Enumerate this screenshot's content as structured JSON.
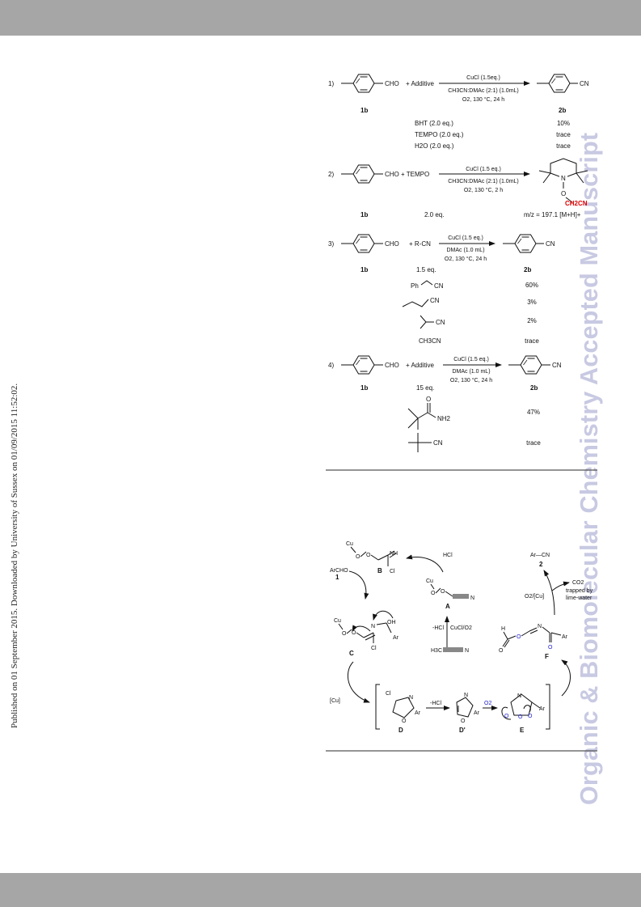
{
  "margin_note": "Published on 01 September 2015. Downloaded by University of Sussex on 01/09/2015 11:52:02.",
  "watermark": "Organic & Biomolecular Chemistry Accepted Manuscript",
  "scheme1": {
    "r1": {
      "num": "1)",
      "cho": "CHO",
      "plus_additive": "+  Additive",
      "cond1": "CuCl (1.5eq.)",
      "cond2": "CH3CN:DMAc (2:1) (1.0mL)",
      "cond3": "O2, 130 °C, 24 h",
      "cn": "CN",
      "lab_sm": "1b",
      "lab_pr": "2b",
      "additives": [
        "BHT (2.0 eq.)",
        "TEMPO (2.0 eq.)",
        "H2O (2.0 eq.)"
      ],
      "yields": [
        "10%",
        "trace",
        "trace"
      ]
    },
    "r2": {
      "num": "2)",
      "cho_tempo": "CHO + TEMPO",
      "cond1": "CuCl (1.5 eq.)",
      "cond2": "CH3CN:DMAc (2:1) (1.0mL)",
      "cond3": "O2, 130 °C, 2 h",
      "n": "N",
      "o": "O",
      "ch2cn": "CH2CN",
      "lab_sm": "1b",
      "eq": "2.0 eq.",
      "ms": "m/z = 197.1 [M+H]+"
    },
    "r3": {
      "num": "3)",
      "cho": "CHO",
      "plus_rcn": "+  R-CN",
      "cond1": "CuCl (1.5 eq.)",
      "cond2": "DMAc (1.0 mL)",
      "cond3": "O2, 130 °C, 24 h",
      "cn": "CN",
      "lab_sm": "1b",
      "eq": "1.5 eq.",
      "lab_pr": "2b",
      "nitriles": [
        "Ph",
        "CN",
        "CN",
        "CN",
        "CH3CN"
      ],
      "yields": [
        "60%",
        "3%",
        "2%",
        "trace"
      ]
    },
    "r4": {
      "num": "4)",
      "cho": "CHO",
      "plus_additive": "+  Additive",
      "cond1": "CuCl (1.5 eq.)",
      "cond2": "DMAc (1.0 mL)",
      "cond3": "O2, 130 °C, 24 h",
      "cn": "CN",
      "lab_sm": "1b",
      "eq": "15 eq.",
      "lab_pr": "2b",
      "o": "O",
      "nh2": "NH2",
      "cn2": "CN",
      "yields": [
        "47%",
        "trace"
      ]
    }
  },
  "scheme2": {
    "cu": "Cu",
    "o": "O",
    "nh": "NH",
    "cl": "Cl",
    "b": "B",
    "archo": "ArCHO",
    "one": "1",
    "hcl": "HCl",
    "a": "A",
    "n": "N",
    "arcn": "Ar—CN",
    "two": "2",
    "co2": "CO2",
    "trapped": "trapped by",
    "limewater": "lime-water",
    "o2cu": "O2/[Cu]",
    "oh": "OH",
    "ar": "Ar",
    "c": "C",
    "minushcl": "-HCl",
    "cucl_o2": "CuCl/O2",
    "h3c": "H3C",
    "h": "H",
    "f": "F",
    "cu_bracket": "[Cu]",
    "d": "D",
    "dprime": "D'",
    "e": "E",
    "o2": "O2"
  },
  "colors": {
    "band": "#a6a6a6",
    "watermark": "#c8c9e2",
    "red": "#e00000",
    "blue": "#1a1acc"
  }
}
